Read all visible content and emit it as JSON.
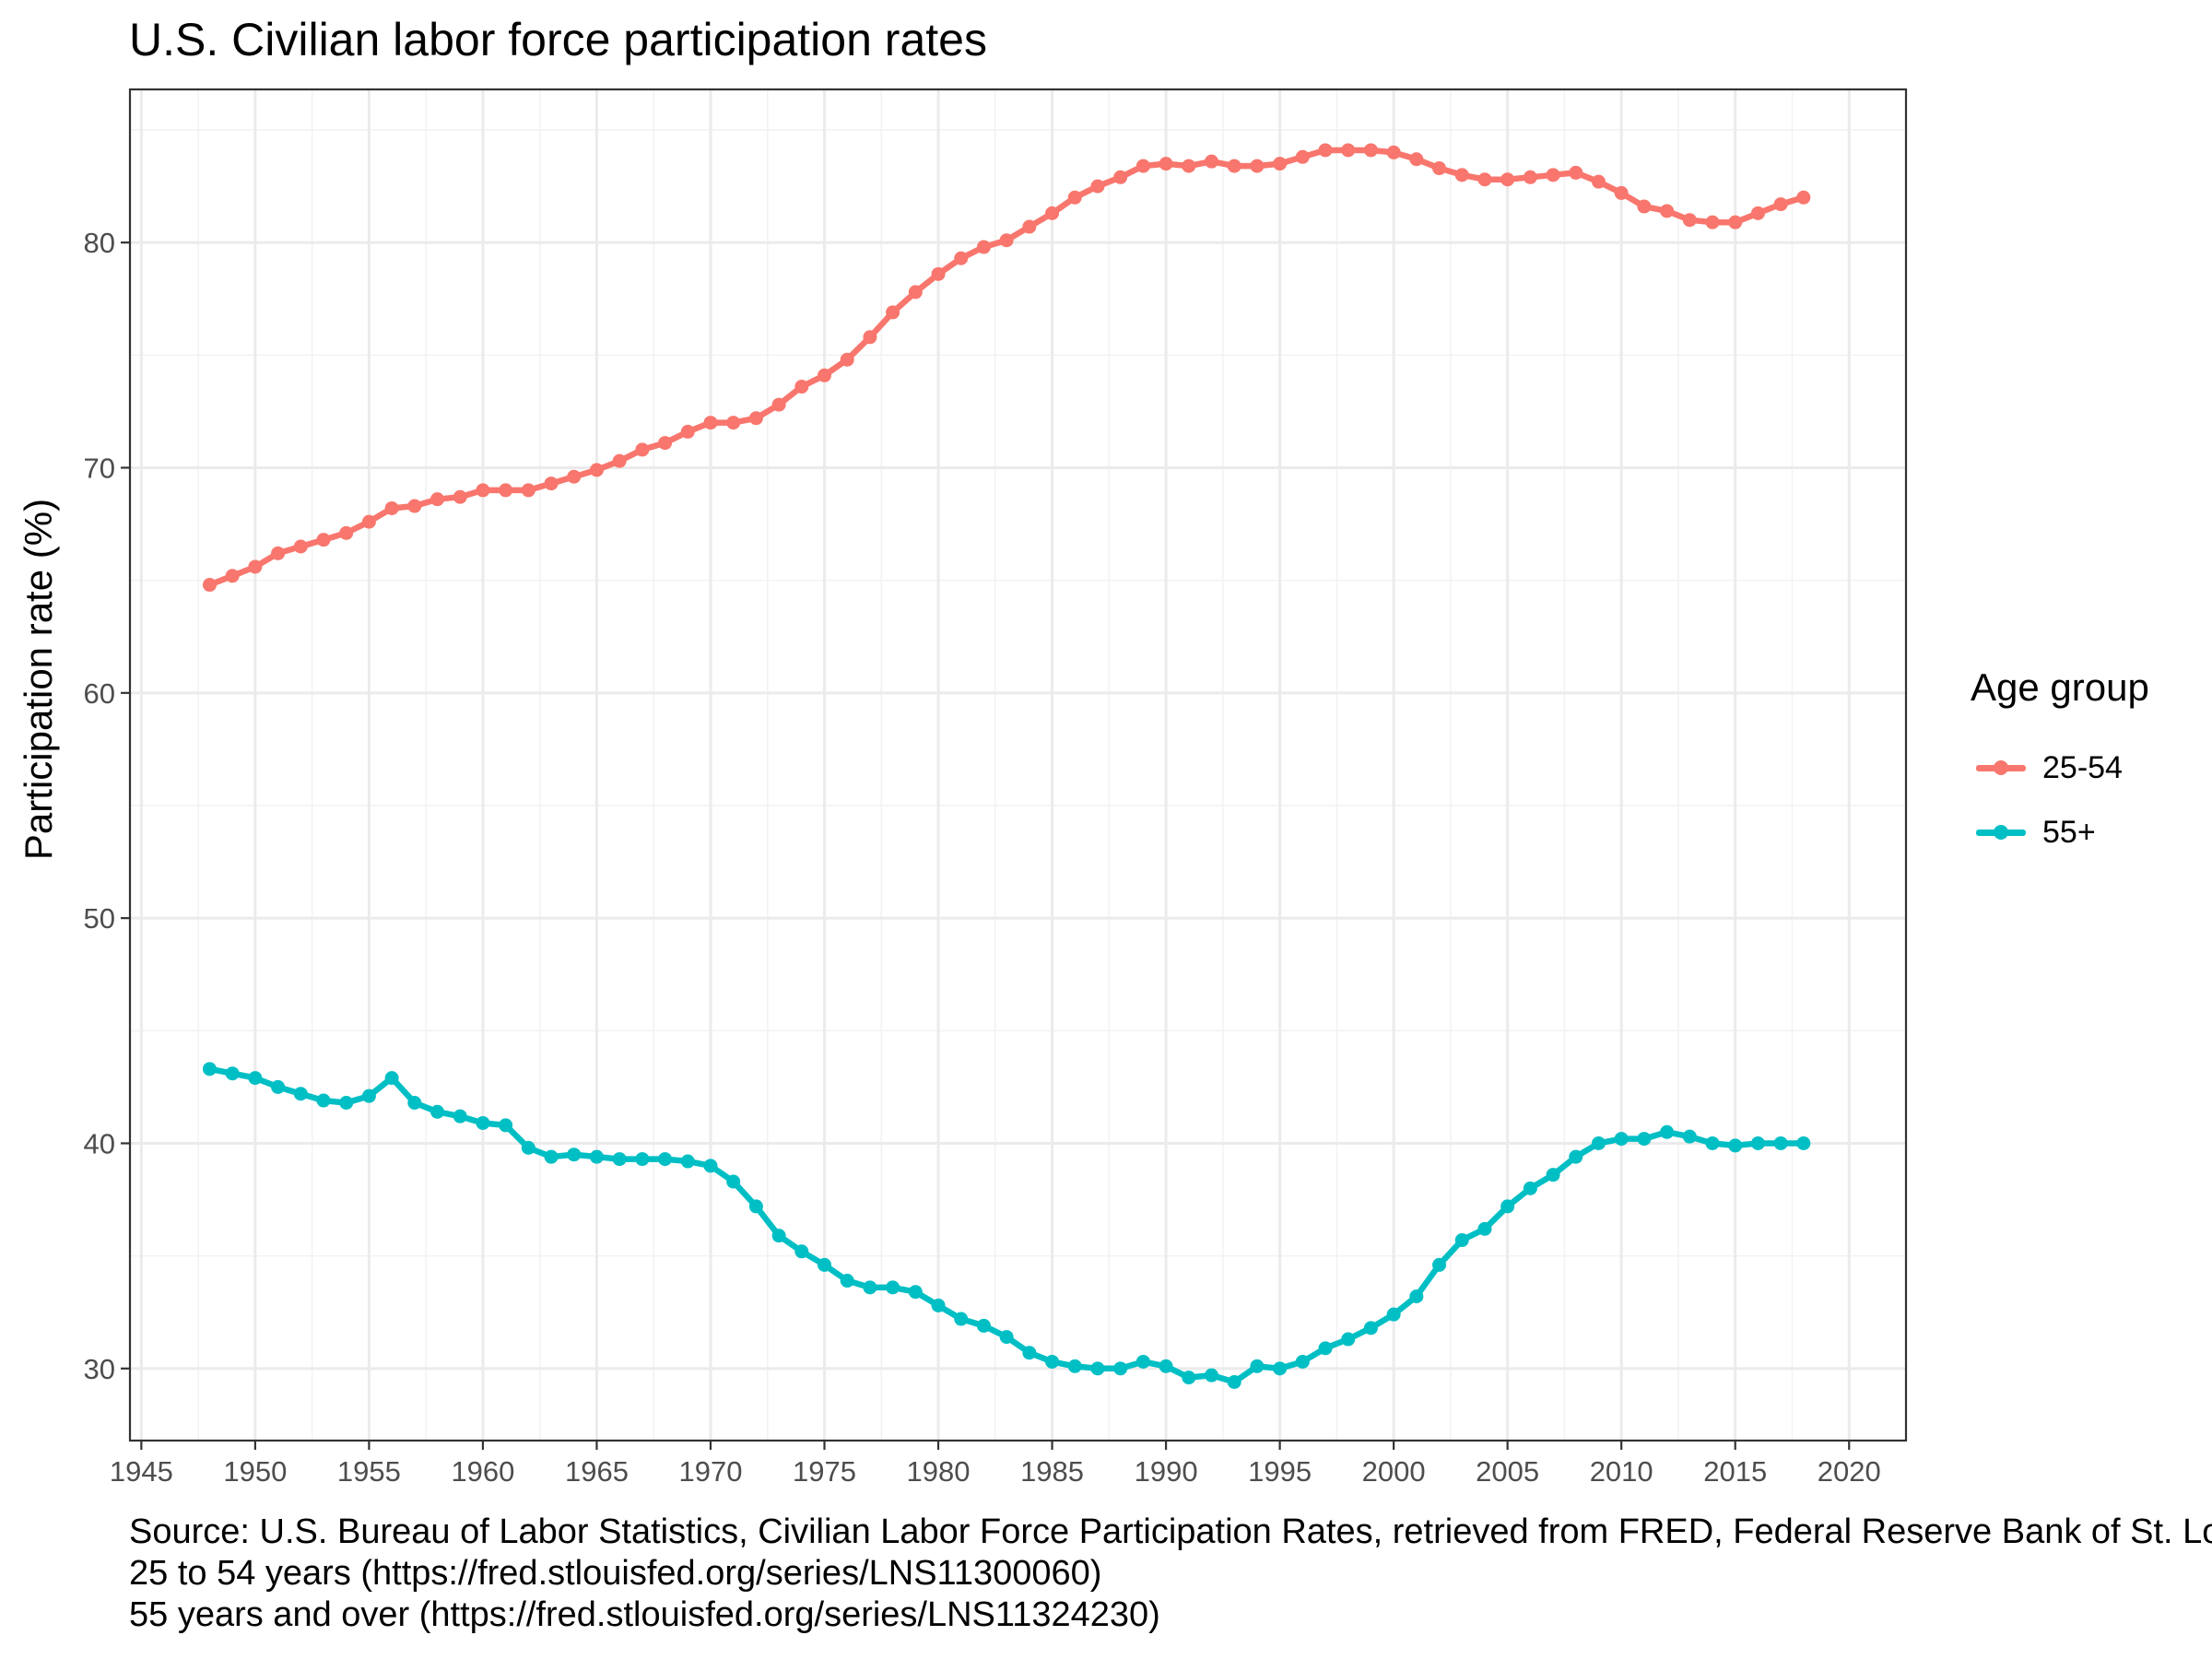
{
  "chart_data": {
    "type": "line",
    "title": "U.S. Civilian labor force participation rates",
    "xlabel": "",
    "ylabel": "Participation rate (%)",
    "xlim": [
      1944.5,
      2022.5
    ],
    "ylim": [
      26.8,
      86.8
    ],
    "x_ticks": [
      1945,
      1950,
      1955,
      1960,
      1965,
      1970,
      1975,
      1980,
      1985,
      1990,
      1995,
      2000,
      2005,
      2010,
      2015,
      2020
    ],
    "y_ticks": [
      30,
      40,
      50,
      60,
      70,
      80
    ],
    "grid": true,
    "legend": {
      "title": "Age group",
      "position": "right"
    },
    "x": [
      1948,
      1949,
      1950,
      1951,
      1952,
      1953,
      1954,
      1955,
      1956,
      1957,
      1958,
      1959,
      1960,
      1961,
      1962,
      1963,
      1964,
      1965,
      1966,
      1967,
      1968,
      1969,
      1970,
      1971,
      1972,
      1973,
      1974,
      1975,
      1976,
      1977,
      1978,
      1979,
      1980,
      1981,
      1982,
      1983,
      1984,
      1985,
      1986,
      1987,
      1988,
      1989,
      1990,
      1991,
      1992,
      1993,
      1994,
      1995,
      1996,
      1997,
      1998,
      1999,
      2000,
      2001,
      2002,
      2003,
      2004,
      2005,
      2006,
      2007,
      2008,
      2009,
      2010,
      2011,
      2012,
      2013,
      2014,
      2015,
      2016,
      2017,
      2018
    ],
    "series": [
      {
        "name": "25-54",
        "color": "#F8766D",
        "values": [
          64.8,
          65.2,
          65.6,
          66.2,
          66.5,
          66.8,
          67.1,
          67.6,
          68.2,
          68.3,
          68.6,
          68.7,
          69.0,
          69.0,
          69.0,
          69.3,
          69.6,
          69.9,
          70.3,
          70.8,
          71.1,
          71.6,
          72.0,
          72.0,
          72.2,
          72.8,
          73.6,
          74.1,
          74.8,
          75.8,
          76.9,
          77.8,
          78.6,
          79.3,
          79.8,
          80.1,
          80.7,
          81.3,
          82.0,
          82.5,
          82.9,
          83.4,
          83.5,
          83.4,
          83.6,
          83.4,
          83.4,
          83.5,
          83.8,
          84.1,
          84.1,
          84.1,
          84.0,
          83.7,
          83.3,
          83.0,
          82.8,
          82.8,
          82.9,
          83.0,
          83.1,
          82.7,
          82.2,
          81.6,
          81.4,
          81.0,
          80.9,
          80.9,
          81.3,
          81.7,
          82.0
        ]
      },
      {
        "name": "55+",
        "color": "#00BFC4",
        "values": [
          43.3,
          43.1,
          42.9,
          42.5,
          42.2,
          41.9,
          41.8,
          42.1,
          42.9,
          41.8,
          41.4,
          41.2,
          40.9,
          40.8,
          39.8,
          39.4,
          39.5,
          39.4,
          39.3,
          39.3,
          39.3,
          39.2,
          39.0,
          38.3,
          37.2,
          35.9,
          35.2,
          34.6,
          33.9,
          33.6,
          33.6,
          33.4,
          32.8,
          32.2,
          31.9,
          31.4,
          30.7,
          30.3,
          30.1,
          30.0,
          30.0,
          30.3,
          30.1,
          29.6,
          29.7,
          29.4,
          30.1,
          30.0,
          30.3,
          30.9,
          31.3,
          31.8,
          32.4,
          33.2,
          34.6,
          35.7,
          36.2,
          37.2,
          38.0,
          38.6,
          39.4,
          40.0,
          40.2,
          40.2,
          40.5,
          40.3,
          40.0,
          39.9,
          40.0,
          40.0,
          40.0
        ]
      }
    ]
  },
  "caption": {
    "line1": "Source: U.S. Bureau of Labor Statistics, Civilian Labor Force Participation Rates, retrieved from FRED, Federal Reserve Bank of St. Louis",
    "line2": "25 to 54 years (https://fred.stlouisfed.org/series/LNS11300060)",
    "line3": "55 years and over (https://fred.stlouisfed.org/series/LNS11324230)"
  }
}
